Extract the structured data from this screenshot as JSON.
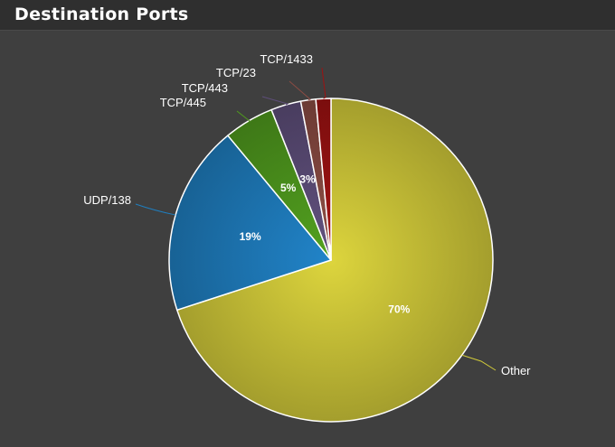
{
  "panel": {
    "title": "Destination Ports"
  },
  "chart_data": {
    "type": "pie",
    "title": "",
    "slices": [
      {
        "label": "Other",
        "value": 70,
        "data_label": "70%",
        "color": "#d2cb3a"
      },
      {
        "label": "UDP/138",
        "value": 19,
        "data_label": "19%",
        "color": "#1f7ebf"
      },
      {
        "label": "TCP/445",
        "value": 5,
        "data_label": "5%",
        "color": "#4f9a1e"
      },
      {
        "label": "TCP/443",
        "value": 3,
        "data_label": "3%",
        "color": "#5e4e7a"
      },
      {
        "label": "TCP/23",
        "value": 1.5,
        "data_label": "",
        "color": "#8a4b43"
      },
      {
        "label": "TCP/1433",
        "value": 1.5,
        "data_label": "",
        "color": "#9e1212"
      }
    ],
    "start_angle_deg": 0,
    "direction": "clockwise",
    "legend": "none"
  }
}
